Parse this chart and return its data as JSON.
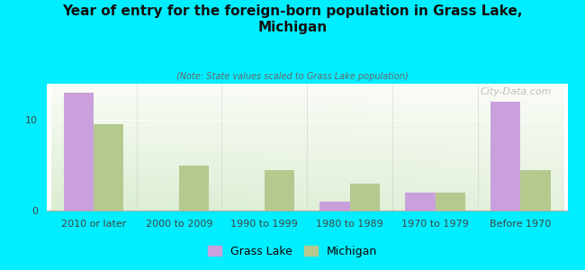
{
  "title": "Year of entry for the foreign-born population in Grass Lake,\nMichigan",
  "subtitle": "(Note: State values scaled to Grass Lake population)",
  "categories": [
    "2010 or later",
    "2000 to 2009",
    "1990 to 1999",
    "1980 to 1989",
    "1970 to 1979",
    "Before 1970"
  ],
  "grass_lake_values": [
    13,
    0,
    0,
    1,
    2,
    12
  ],
  "michigan_values": [
    9.5,
    5,
    4.5,
    3,
    2,
    4.5
  ],
  "grass_lake_color": "#c9a0dc",
  "michigan_color": "#b5c98e",
  "background_outer": "#00eeff",
  "ylim": [
    0,
    14
  ],
  "yticks": [
    0,
    10
  ],
  "bar_width": 0.35,
  "watermark": "City-Data.com",
  "legend_grass_lake": "Grass Lake",
  "legend_michigan": "Michigan",
  "title_fontsize": 11,
  "subtitle_fontsize": 7,
  "tick_fontsize": 8,
  "legend_fontsize": 9
}
